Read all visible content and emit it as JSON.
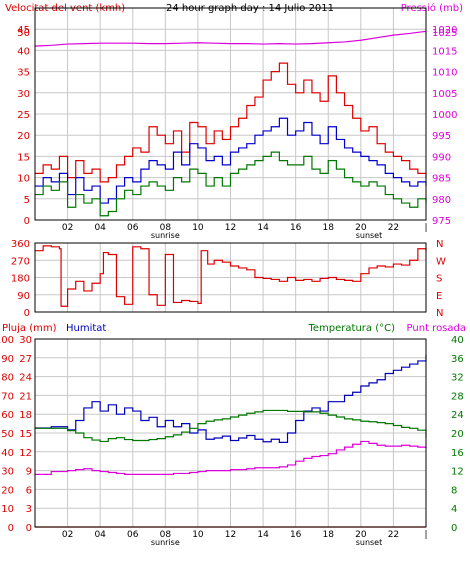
{
  "colors": {
    "wind": "#dd0000",
    "gust": "#dd0000",
    "avg_wind": "#007700",
    "max_wind": "#0000cc",
    "pressure": "#dd00dd",
    "direction": "#dd0000",
    "humidity": "#0000bb",
    "temperature": "#007700",
    "dewpoint": "#dd00dd",
    "rain": "#dd0000",
    "grid": "#c8c8c8",
    "frame": "#000000"
  },
  "chart_data": [
    {
      "type": "line",
      "title": "24 hour graph day : 14 Julio 2011",
      "left_label": "Velocitat del vent (kmh)",
      "right_label": "Pressió (mb)",
      "x_ticks": [
        "02",
        "04",
        "06",
        "08",
        "10",
        "12",
        "14",
        "16",
        "18",
        "20",
        "22"
      ],
      "x_markers": [
        {
          "label": "sunrise",
          "x": 8
        },
        {
          "label": "sunset",
          "x": 20.5
        }
      ],
      "end_mark": "|",
      "xlim": [
        0,
        24
      ],
      "ylim_left": [
        0,
        50
      ],
      "yticks_left": [
        "0",
        "5",
        "10",
        "15",
        "20",
        "25",
        "30",
        "35",
        "40",
        "45",
        "50"
      ],
      "ylim_right": [
        975,
        1025
      ],
      "yticks_right": [
        "975",
        "980",
        "985",
        "990",
        "995",
        "1000",
        "1005",
        "1010",
        "1015",
        "1020",
        "1025"
      ],
      "grid": true,
      "series": [
        {
          "axis": "left",
          "color": "wind",
          "x": [
            0,
            0.5,
            1,
            1.5,
            2,
            2.5,
            3,
            3.5,
            4,
            4.5,
            5,
            5.5,
            6,
            6.5,
            7,
            7.5,
            8,
            8.5,
            9,
            9.5,
            10,
            10.5,
            11,
            11.5,
            12,
            12.5,
            13,
            13.5,
            14,
            14.5,
            15,
            15.5,
            16,
            16.5,
            17,
            17.5,
            18,
            18.5,
            19,
            19.5,
            20,
            20.5,
            21,
            21.5,
            22,
            22.5,
            23,
            23.5,
            24
          ],
          "y": [
            11,
            13,
            12,
            15,
            10,
            14,
            11,
            12,
            9,
            10,
            13,
            15,
            17,
            16,
            22,
            20,
            18,
            21,
            16,
            23,
            22,
            18,
            21,
            19,
            22,
            24,
            27,
            29,
            33,
            35,
            37,
            32,
            30,
            33,
            30,
            28,
            34,
            30,
            27,
            24,
            21,
            22,
            18,
            16,
            15,
            14,
            12,
            11,
            10
          ]
        },
        {
          "axis": "left",
          "color": "max_wind",
          "x": [
            0,
            0.5,
            1,
            1.5,
            2,
            2.5,
            3,
            3.5,
            4,
            4.5,
            5,
            5.5,
            6,
            6.5,
            7,
            7.5,
            8,
            8.5,
            9,
            9.5,
            10,
            10.5,
            11,
            11.5,
            12,
            12.5,
            13,
            13.5,
            14,
            14.5,
            15,
            15.5,
            16,
            16.5,
            17,
            17.5,
            18,
            18.5,
            19,
            19.5,
            20,
            20.5,
            21,
            21.5,
            22,
            22.5,
            23,
            23.5,
            24
          ],
          "y": [
            8,
            10,
            9,
            11,
            6,
            10,
            7,
            8,
            4,
            5,
            8,
            10,
            9,
            12,
            14,
            13,
            12,
            16,
            13,
            18,
            17,
            14,
            15,
            13,
            16,
            17,
            18,
            20,
            21,
            22,
            24,
            20,
            21,
            23,
            20,
            18,
            22,
            19,
            17,
            16,
            15,
            14,
            13,
            11,
            10,
            9,
            8,
            9,
            8
          ]
        },
        {
          "axis": "left",
          "color": "avg_wind",
          "x": [
            0,
            0.5,
            1,
            1.5,
            2,
            2.5,
            3,
            3.5,
            4,
            4.5,
            5,
            5.5,
            6,
            6.5,
            7,
            7.5,
            8,
            8.5,
            9,
            9.5,
            10,
            10.5,
            11,
            11.5,
            12,
            12.5,
            13,
            13.5,
            14,
            14.5,
            15,
            15.5,
            16,
            16.5,
            17,
            17.5,
            18,
            18.5,
            19,
            19.5,
            20,
            20.5,
            21,
            21.5,
            22,
            22.5,
            23,
            23.5,
            24
          ],
          "y": [
            6,
            8,
            7,
            9,
            3,
            6,
            4,
            5,
            1,
            2,
            5,
            7,
            6,
            8,
            9,
            8,
            7,
            10,
            9,
            12,
            11,
            8,
            10,
            8,
            11,
            12,
            13,
            14,
            15,
            16,
            14,
            13,
            13,
            15,
            12,
            11,
            14,
            12,
            10,
            9,
            8,
            9,
            8,
            6,
            5,
            4,
            3,
            5,
            4
          ]
        },
        {
          "axis": "right",
          "color": "pressure",
          "x": [
            0,
            1,
            2,
            3,
            4,
            5,
            6,
            7,
            8,
            9,
            10,
            11,
            12,
            13,
            14,
            15,
            16,
            17,
            18,
            19,
            20,
            21,
            22,
            23,
            24
          ],
          "y": [
            1016.0,
            1016.2,
            1016.5,
            1016.6,
            1016.7,
            1016.7,
            1016.7,
            1016.6,
            1016.6,
            1016.7,
            1016.8,
            1016.7,
            1016.6,
            1016.6,
            1016.5,
            1016.6,
            1016.5,
            1016.6,
            1016.8,
            1017.0,
            1017.4,
            1018.0,
            1018.6,
            1019.0,
            1019.5
          ]
        }
      ]
    },
    {
      "type": "line",
      "title": "",
      "left_label": "",
      "yticks_left": [
        "0",
        "90",
        "180",
        "270",
        "360"
      ],
      "ylim_left": [
        0,
        360
      ],
      "right_labels": [
        "N",
        "W",
        "S",
        "E",
        "N"
      ],
      "xlim": [
        0,
        24
      ],
      "grid": true,
      "series": [
        {
          "axis": "left",
          "color": "direction",
          "x": [
            0,
            0.5,
            1,
            1.5,
            1.6,
            2,
            2.5,
            3,
            3.5,
            4,
            4.2,
            4.5,
            5,
            5.5,
            6,
            6.5,
            7,
            7.5,
            8,
            8.5,
            9,
            9.5,
            10,
            10.2,
            10.6,
            11,
            11.5,
            12,
            12.5,
            13,
            13.5,
            14,
            14.5,
            15,
            15.5,
            16,
            16.5,
            17,
            17.5,
            18,
            18.5,
            19,
            19.5,
            20,
            20.5,
            21,
            21.5,
            22,
            22.5,
            23,
            23.5,
            24
          ],
          "y": [
            320,
            345,
            340,
            330,
            30,
            120,
            160,
            110,
            150,
            200,
            310,
            300,
            80,
            40,
            340,
            330,
            90,
            35,
            300,
            50,
            60,
            55,
            45,
            320,
            250,
            270,
            260,
            240,
            230,
            220,
            180,
            175,
            170,
            160,
            180,
            165,
            170,
            160,
            175,
            180,
            170,
            165,
            160,
            200,
            230,
            240,
            235,
            250,
            245,
            270,
            330,
            320
          ]
        }
      ]
    },
    {
      "type": "line",
      "title": "",
      "left_labels": [
        "Pluja (mm)",
        "Humitat"
      ],
      "right_labels": [
        "Temperatura (°C)",
        "Punt rosada"
      ],
      "x_ticks": [
        "02",
        "04",
        "06",
        "08",
        "10",
        "12",
        "14",
        "16",
        "18",
        "20",
        "22"
      ],
      "x_markers": [
        {
          "label": "sunrise",
          "x": 8
        },
        {
          "label": "sunset",
          "x": 20.5
        }
      ],
      "end_mark": "|",
      "xlim": [
        0,
        24
      ],
      "ylim_rain": [
        0,
        100
      ],
      "yticks_rain": [
        "0",
        "10",
        "20",
        "30",
        "40",
        "50",
        "60",
        "70",
        "80",
        "90",
        "100"
      ],
      "ylim_humidity": [
        0,
        30
      ],
      "yticks_humidity": [
        "0",
        "3",
        "6",
        "9",
        "12",
        "15",
        "18",
        "21",
        "24",
        "27",
        "30"
      ],
      "ylim_temp": [
        0,
        40
      ],
      "yticks_temp": [
        "0",
        "4",
        "8",
        "12",
        "16",
        "20",
        "24",
        "28",
        "32",
        "36",
        "40"
      ],
      "grid": true,
      "series": [
        {
          "axis": "humidity",
          "color": "humidity",
          "x": [
            0,
            1,
            2,
            2.5,
            3,
            3.5,
            4,
            4.5,
            5,
            5.5,
            6,
            6.5,
            7,
            7.5,
            8,
            8.5,
            9,
            9.5,
            10,
            10.5,
            11,
            11.5,
            12,
            12.5,
            13,
            13.5,
            14,
            14.5,
            15,
            15.5,
            16,
            16.5,
            17,
            17.5,
            18,
            18.5,
            19,
            19.5,
            20,
            20.5,
            21,
            21.5,
            22,
            22.5,
            23,
            23.5,
            24
          ],
          "y": [
            15.8,
            16,
            15.5,
            17,
            19,
            20,
            18.5,
            19.5,
            18,
            19,
            18.5,
            17,
            17.5,
            16,
            17,
            16,
            16.5,
            15,
            15.5,
            14,
            14.2,
            14.5,
            13.8,
            14.2,
            14.6,
            14,
            13.6,
            14,
            13.5,
            15,
            17,
            18.5,
            19,
            18.5,
            20,
            20,
            21,
            21.5,
            22.5,
            23,
            23.5,
            24.5,
            25,
            25.5,
            26,
            26.5,
            27.5
          ]
        },
        {
          "axis": "temp",
          "color": "temperature",
          "x": [
            0,
            1,
            2,
            2.5,
            3,
            3.5,
            4,
            4.5,
            5,
            5.5,
            6,
            6.5,
            7,
            7.5,
            8,
            8.5,
            9,
            9.5,
            10,
            10.5,
            11,
            11.5,
            12,
            12.5,
            13,
            13.5,
            14,
            14.5,
            15,
            15.5,
            16,
            16.5,
            17,
            17.5,
            18,
            18.5,
            19,
            19.5,
            20,
            20.5,
            21,
            21.5,
            22,
            22.5,
            23,
            23.5,
            24
          ],
          "y": [
            21,
            21,
            20.5,
            20,
            19,
            18.5,
            18.2,
            18.8,
            19,
            18.6,
            18.4,
            18.4,
            18.6,
            18.8,
            19.2,
            19.6,
            20.2,
            21,
            22,
            22.5,
            22.8,
            23,
            23.4,
            23.8,
            24.2,
            24.5,
            24.8,
            24.8,
            24.8,
            24.6,
            24.6,
            24.5,
            24.5,
            24.2,
            23.8,
            23.4,
            23.0,
            22.8,
            22.5,
            22.4,
            22.2,
            22.0,
            21.6,
            21.2,
            21.0,
            20.6,
            19.0
          ]
        },
        {
          "axis": "temp",
          "color": "dewpoint",
          "x": [
            0,
            1,
            2,
            2.5,
            3,
            3.5,
            4,
            4.5,
            5,
            5.5,
            6,
            6.5,
            7,
            7.5,
            8,
            8.5,
            9,
            9.5,
            10,
            10.5,
            11,
            11.5,
            12,
            12.5,
            13,
            13.5,
            14,
            14.5,
            15,
            15.5,
            16,
            16.5,
            17,
            17.5,
            18,
            18.5,
            19,
            19.5,
            20,
            20.5,
            21,
            21.5,
            22,
            22.5,
            23,
            23.5,
            24
          ],
          "y": [
            11.2,
            11.8,
            12,
            12.2,
            12.4,
            12,
            11.8,
            11.6,
            11.4,
            11.2,
            11.2,
            11.2,
            11.2,
            11.2,
            11.2,
            11.4,
            11.4,
            11.6,
            11.8,
            12,
            12,
            12,
            12.2,
            12.2,
            12.4,
            12.6,
            12.6,
            12.6,
            12.8,
            13.2,
            14.0,
            14.6,
            15.0,
            15.2,
            15.6,
            16.4,
            17.0,
            17.6,
            18.2,
            17.8,
            17.4,
            17.2,
            17.2,
            17.4,
            17.2,
            17.0,
            16.8
          ]
        },
        {
          "axis": "rain",
          "color": "rain",
          "x": [
            0,
            24
          ],
          "y": [
            0,
            0
          ]
        }
      ]
    }
  ]
}
